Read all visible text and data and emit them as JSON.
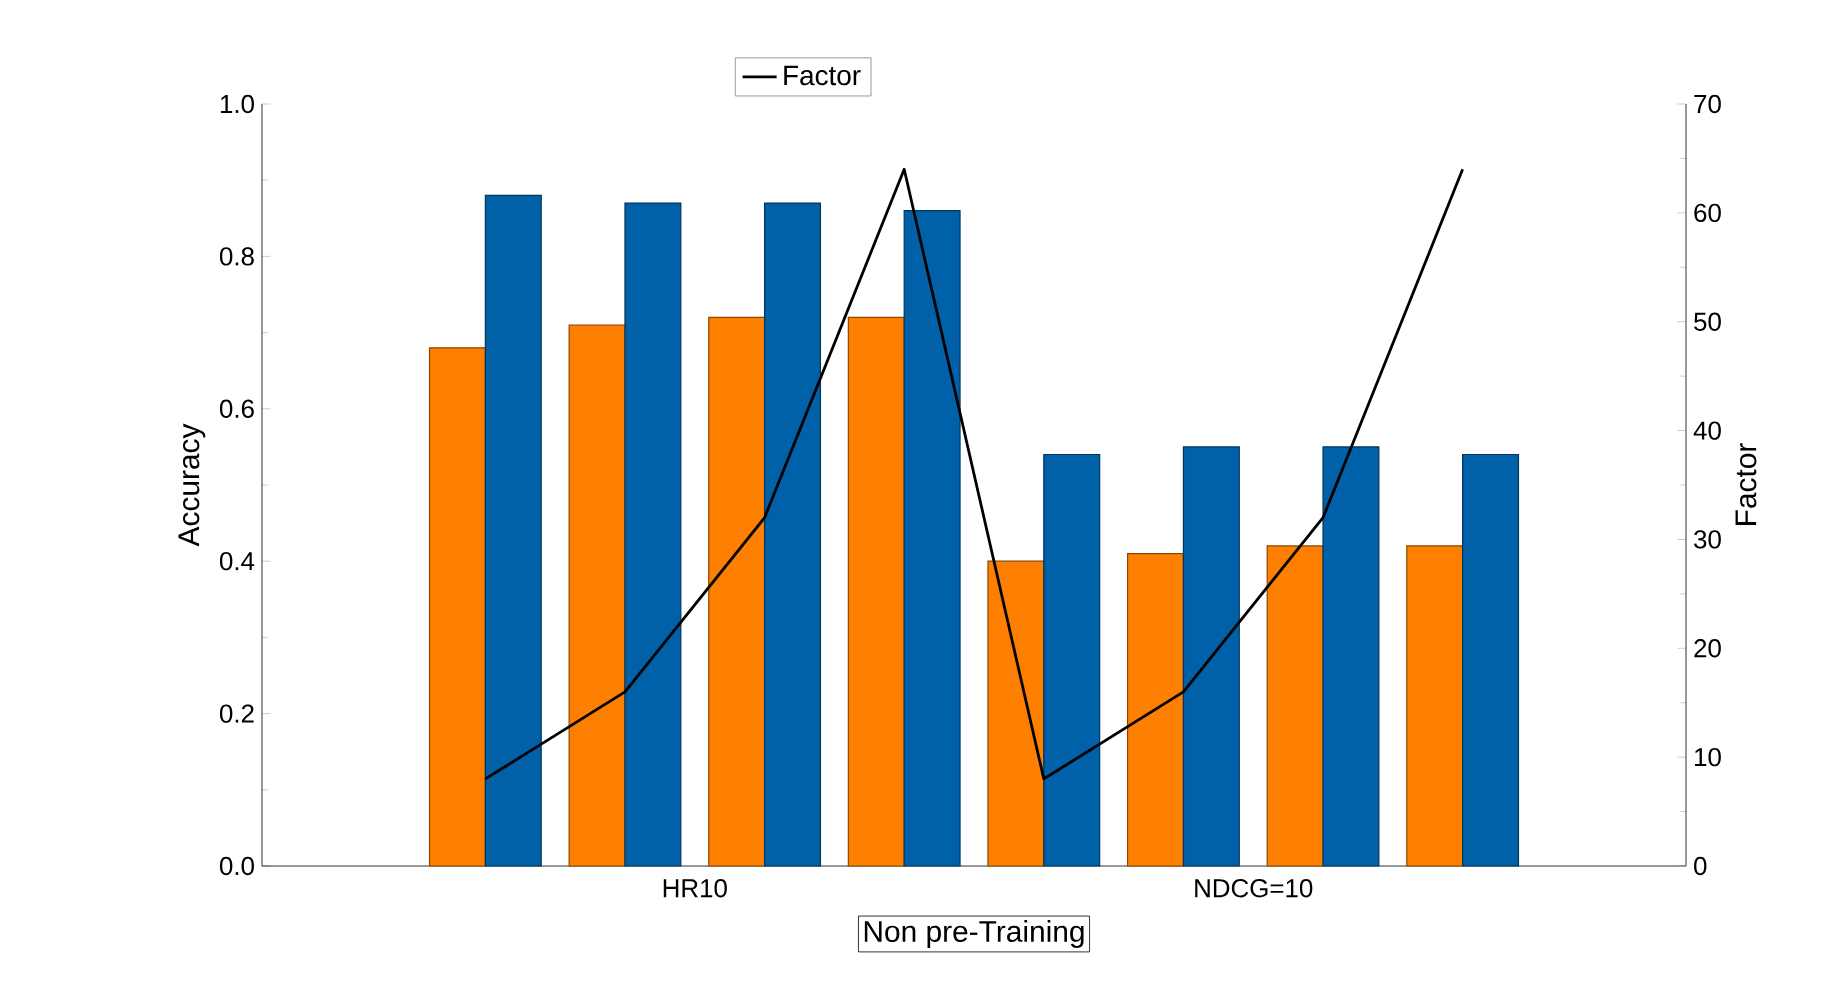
{
  "chart_data": {
    "type": "bar",
    "xlabel": "Non pre-Training",
    "ylabel": "Accuracy",
    "y2label": "Factor",
    "categories": [
      null,
      null,
      null,
      null,
      null,
      null,
      null,
      null
    ],
    "annotations": [
      "HR10",
      "NDCG=10"
    ],
    "ylim": [
      0,
      1
    ],
    "yticks": [
      {
        "value": 0,
        "label": "0.0"
      },
      {
        "value": 0.2,
        "label": "0.2"
      },
      {
        "value": 0.4,
        "label": "0.4"
      },
      {
        "value": 0.6,
        "label": "0.6"
      },
      {
        "value": 0.8,
        "label": "0.8"
      },
      {
        "value": 1,
        "label": "1.0"
      }
    ],
    "y2lim": [
      0,
      70
    ],
    "y2ticks": [
      0,
      10,
      20,
      30,
      40,
      50,
      60,
      70
    ],
    "legend": "top",
    "series": [
      {
        "color": "#ff8000",
        "values": [
          0.68,
          0.71,
          0.72,
          0.72,
          0.4,
          0.41,
          0.42,
          0.42
        ]
      },
      {
        "color": "#0060a8",
        "values": [
          0.88,
          0.87,
          0.87,
          0.86,
          0.54,
          0.55,
          0.55,
          0.54
        ]
      },
      {
        "name": "Factor",
        "type": "line",
        "axis": "y2",
        "color": "#000000",
        "marker": "none",
        "line_style": "solid",
        "values": [
          8,
          16,
          32,
          64,
          8,
          16,
          32,
          64
        ]
      }
    ]
  }
}
